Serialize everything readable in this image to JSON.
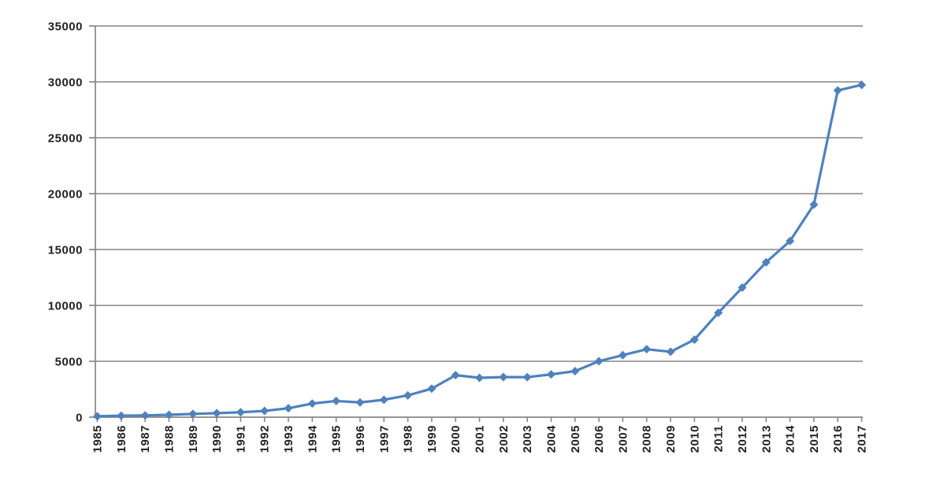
{
  "chart_data": {
    "type": "line",
    "title": "",
    "xlabel": "",
    "ylabel": "",
    "legend": "none",
    "grid": true,
    "ylim": [
      0,
      35000
    ],
    "ytick_interval": 5000,
    "yticks": [
      0,
      5000,
      10000,
      15000,
      20000,
      25000,
      30000,
      35000
    ],
    "x_tick_label_rotation": -90,
    "marker": "diamond",
    "categories": [
      "1985",
      "1986",
      "1987",
      "1988",
      "1989",
      "1990",
      "1991",
      "1992",
      "1993",
      "1994",
      "1995",
      "1996",
      "1997",
      "1998",
      "1999",
      "2000",
      "2001",
      "2002",
      "2003",
      "2004",
      "2005",
      "2006",
      "2007",
      "2008",
      "2009",
      "2010",
      "2011",
      "2012",
      "2013",
      "2014",
      "2015",
      "2016",
      "2017"
    ],
    "values": [
      80,
      130,
      160,
      210,
      290,
      360,
      440,
      560,
      800,
      1220,
      1450,
      1320,
      1560,
      1950,
      2550,
      3760,
      3520,
      3590,
      3580,
      3830,
      4120,
      5010,
      5550,
      6080,
      5850,
      6940,
      9340,
      11590,
      13860,
      15760,
      19020,
      29230,
      29730
    ],
    "colors": {
      "background": "#ffffff",
      "series": "#4f81bd",
      "gridline": "#969696",
      "axis": "#878787",
      "tick_label": "#222222"
    }
  }
}
